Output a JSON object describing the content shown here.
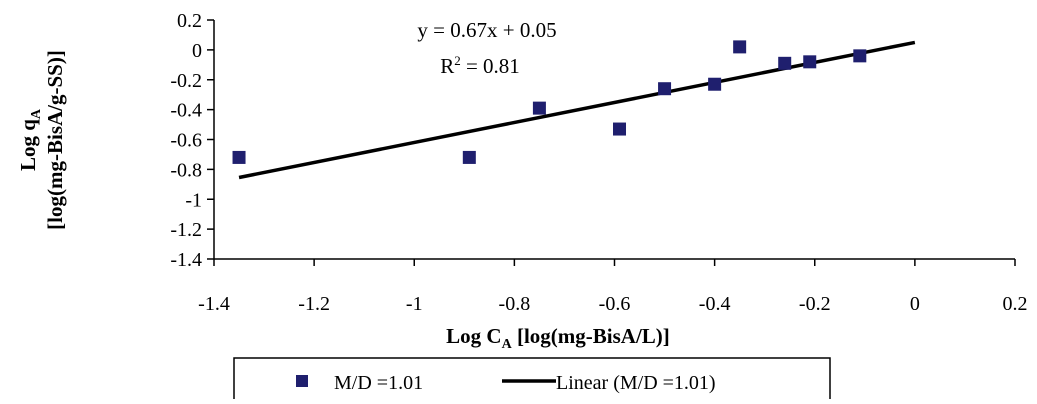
{
  "chart_data": {
    "type": "scatter",
    "xlabel": {
      "main": "Log C",
      "sub": "A",
      "rest": " [log(mg-BisA/L)]"
    },
    "ylabel": {
      "line1_main": "Log q",
      "line1_sub": "A",
      "line2": "[log(mg-BisA/g-SS)]"
    },
    "xlim": [
      -1.4,
      0.2
    ],
    "ylim": [
      -1.4,
      0.2
    ],
    "x_ticks": [
      -1.4,
      -1.2,
      -1,
      -0.8,
      -0.6,
      -0.4,
      -0.2,
      0,
      0.2
    ],
    "y_ticks": [
      0.2,
      0,
      -0.2,
      -0.4,
      -0.6,
      -0.8,
      -1,
      -1.2,
      -1.4
    ],
    "series": [
      {
        "name": "M/D =1.01",
        "color": "#1f1f6e",
        "marker": "square",
        "points": [
          {
            "x": -1.35,
            "y": -0.72
          },
          {
            "x": -0.89,
            "y": -0.72
          },
          {
            "x": -0.75,
            "y": -0.39
          },
          {
            "x": -0.59,
            "y": -0.53
          },
          {
            "x": -0.5,
            "y": -0.26
          },
          {
            "x": -0.4,
            "y": -0.23
          },
          {
            "x": -0.35,
            "y": 0.02
          },
          {
            "x": -0.26,
            "y": -0.09
          },
          {
            "x": -0.21,
            "y": -0.08
          },
          {
            "x": -0.11,
            "y": -0.04
          }
        ]
      }
    ],
    "trendline": {
      "name": "Linear (M/D =1.01)",
      "color": "#000000",
      "slope": 0.67,
      "intercept": 0.05,
      "x_range": [
        -1.35,
        0
      ]
    },
    "annotations": {
      "equation": "y = 0.67x + 0.05",
      "r2_main": "R",
      "r2_sup": "2",
      "r2_rest": " = 0.81"
    },
    "legend": {
      "placement": "bottom",
      "marker_label": "M/D =1.01",
      "line_label": "Linear (M/D =1.01)"
    }
  }
}
